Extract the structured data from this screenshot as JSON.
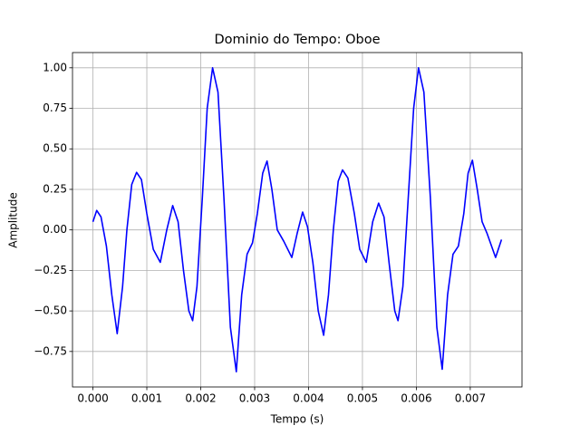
{
  "chart_data": {
    "type": "line",
    "title": "Dominio do Tempo: Oboe",
    "x_label": "Tempo (s)",
    "y_label": "Amplitude",
    "xlim": [
      -0.000379,
      0.00796
    ],
    "ylim": [
      -0.969,
      1.094
    ],
    "xticks": [
      {
        "value": 0,
        "label": "0.000"
      },
      {
        "value": 0.001,
        "label": "0.001"
      },
      {
        "value": 0.002,
        "label": "0.002"
      },
      {
        "value": 0.003,
        "label": "0.003"
      },
      {
        "value": 0.004,
        "label": "0.004"
      },
      {
        "value": 0.005,
        "label": "0.005"
      },
      {
        "value": 0.006,
        "label": "0.006"
      },
      {
        "value": 0.007,
        "label": "0.007"
      }
    ],
    "yticks": [
      {
        "value": -0.75,
        "label": "−0.75"
      },
      {
        "value": -0.5,
        "label": "−0.50"
      },
      {
        "value": -0.25,
        "label": "−0.25"
      },
      {
        "value": 0,
        "label": "0.00"
      },
      {
        "value": 0.25,
        "label": "0.25"
      },
      {
        "value": 0.5,
        "label": "0.50"
      },
      {
        "value": 0.75,
        "label": "0.75"
      },
      {
        "value": 1,
        "label": "1.00"
      }
    ],
    "grid": true,
    "series": [
      {
        "color": "#0000ff",
        "x": [
          0.0,
          7e-05,
          0.00015,
          0.00025,
          0.00035,
          0.00045,
          0.00055,
          0.00063,
          0.00072,
          0.00081,
          0.0009,
          0.001,
          0.00112,
          0.00125,
          0.00137,
          0.00148,
          0.00158,
          0.00168,
          0.00178,
          0.00185,
          0.00193,
          0.00203,
          0.00212,
          0.00222,
          0.00232,
          0.00243,
          0.00255,
          0.00266,
          0.00276,
          0.00286,
          0.00296,
          0.00305,
          0.00315,
          0.00323,
          0.00332,
          0.00342,
          0.00354,
          0.00369,
          0.00379,
          0.00389,
          0.00398,
          0.00408,
          0.00418,
          0.00428,
          0.00437,
          0.00446,
          0.00455,
          0.00463,
          0.00473,
          0.00485,
          0.00495,
          0.00507,
          0.00519,
          0.0053,
          0.0054,
          0.0055,
          0.0056,
          0.00566,
          0.00575,
          0.00585,
          0.00595,
          0.00604,
          0.00614,
          0.00626,
          0.00638,
          0.00648,
          0.00658,
          0.00668,
          0.00678,
          0.00688,
          0.00696,
          0.00704,
          0.00713,
          0.00722,
          0.00731,
          0.00747,
          0.00758
        ],
        "values": [
          0.05,
          0.12,
          0.08,
          -0.1,
          -0.4,
          -0.64,
          -0.35,
          0.0,
          0.28,
          0.355,
          0.31,
          0.1,
          -0.12,
          -0.2,
          0.0,
          0.15,
          0.05,
          -0.25,
          -0.5,
          -0.56,
          -0.35,
          0.2,
          0.75,
          1.0,
          0.85,
          0.2,
          -0.6,
          -0.875,
          -0.4,
          -0.15,
          -0.08,
          0.1,
          0.35,
          0.425,
          0.25,
          0.0,
          -0.07,
          -0.17,
          -0.02,
          0.11,
          0.02,
          -0.2,
          -0.5,
          -0.65,
          -0.4,
          0.0,
          0.3,
          0.37,
          0.32,
          0.1,
          -0.12,
          -0.2,
          0.05,
          0.165,
          0.08,
          -0.22,
          -0.5,
          -0.56,
          -0.35,
          0.2,
          0.75,
          1.0,
          0.85,
          0.2,
          -0.6,
          -0.86,
          -0.4,
          -0.15,
          -0.1,
          0.1,
          0.35,
          0.43,
          0.25,
          0.05,
          -0.02,
          -0.17,
          -0.06
        ]
      }
    ]
  }
}
